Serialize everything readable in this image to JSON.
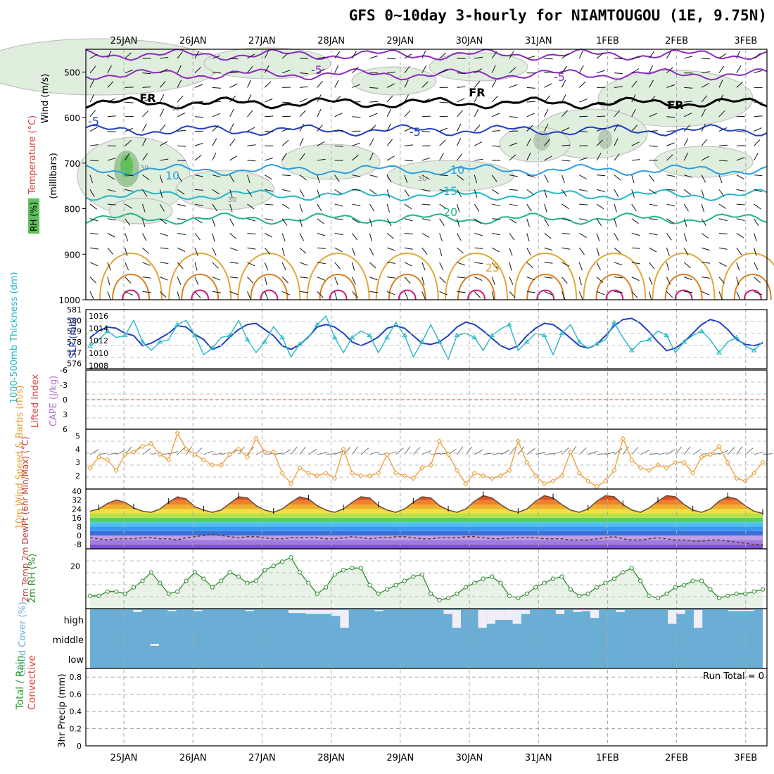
{
  "title": "GFS 0~10day 3-hourly for NIAMTOUGOU (1E, 9.75N)",
  "colors": {
    "pressure_dark": "#1f3fc4",
    "thickness_cyan": "#20b8c8",
    "wind_orange": "#ee9a2c",
    "rh_green": "#2c8c2c",
    "rh_fill": "#e8f2e6",
    "cloud_blue": "#6aaed6",
    "cape_violet": "#b070d0",
    "li_red": "#e04040",
    "freezing": "#000000"
  },
  "chart_data": [
    {
      "type": "line",
      "panel": "upper-air",
      "ylabel_parts": [
        "Wind (m/s)",
        "Temperature (°C)",
        "RH (%)",
        "(millibars)"
      ],
      "y_ticks": [
        "500",
        "600",
        "700",
        "800",
        "900",
        "1000"
      ],
      "ylim": [
        1000,
        450
      ],
      "x_ticks": [
        "25JAN",
        "26JAN",
        "27JAN",
        "28JAN",
        "29JAN",
        "30JAN",
        "31JAN",
        "1FEB",
        "2FEB",
        "3FEB"
      ],
      "contour_labels": [
        "-5",
        "-5",
        "FR",
        "FR",
        "FR",
        "-5",
        "-5",
        "10",
        "10",
        "15",
        "20",
        "25",
        "30",
        "30",
        "30",
        "10"
      ],
      "isotherms": [
        {
          "name": "-10",
          "pressure": 462,
          "color": "#8a2cc0"
        },
        {
          "name": "-5",
          "pressure": 505,
          "color": "#8a2cc0"
        },
        {
          "name": "FR",
          "pressure": 568,
          "color": "#000000"
        },
        {
          "name": "5",
          "pressure": 628,
          "color": "#1f3fc4"
        },
        {
          "name": "10",
          "pressure": 715,
          "color": "#2a9fe0"
        },
        {
          "name": "15",
          "pressure": 770,
          "color": "#20b8c8"
        },
        {
          "name": "20",
          "pressure": 822,
          "color": "#1fb48a"
        },
        {
          "name": "25",
          "pressure": 920,
          "color": "#e0a838"
        },
        {
          "name": "30",
          "pressure": 965,
          "color": "#d8801e"
        },
        {
          "name": "35",
          "pressure": 995,
          "color": "#cc1a80"
        }
      ]
    },
    {
      "type": "line",
      "panel": "pressure-thickness",
      "ylabel_left": "1000-500mb Thickness (dm)",
      "ylabel_right": "SLP (mb)",
      "left_ticks": [
        "581",
        "580",
        "579",
        "578",
        "577",
        "576"
      ],
      "right_ticks": [
        "1016",
        "1014",
        "1012",
        "1010",
        "1008"
      ],
      "series": [
        {
          "name": "SLP (mb)",
          "values": [
            1012.5,
            1013.6,
            1014.2,
            1014.0,
            1013.2,
            1012.8,
            1011.2,
            1011.6,
            1012.4,
            1013.2,
            1014.4,
            1014.2,
            1013.0,
            1012.2,
            1010.6,
            1011.2,
            1012.6,
            1013.8,
            1014.6,
            1014.8,
            1013.8,
            1012.8,
            1011.2,
            1010.6,
            1011.4,
            1012.6,
            1014.2,
            1014.6,
            1014.2,
            1013.2,
            1011.8,
            1011.2,
            1011.8,
            1012.6,
            1014.0,
            1014.4,
            1014.0,
            1012.8,
            1011.6,
            1011.4,
            1011.8,
            1012.8,
            1014.2,
            1015.0,
            1014.6,
            1013.6,
            1012.4,
            1011.2,
            1010.6,
            1011.2,
            1012.8,
            1014.0,
            1014.8,
            1014.6,
            1013.6,
            1012.4,
            1011.2,
            1010.8,
            1011.4,
            1012.8,
            1014.4,
            1015.4,
            1015.6,
            1014.8,
            1013.4,
            1011.8,
            1010.4,
            1010.8,
            1011.8,
            1013.2,
            1014.6,
            1015.4,
            1015.0,
            1013.8,
            1012.2,
            1011.4,
            1011.2,
            1011.6
          ]
        },
        {
          "name": "Thickness (dm)",
          "values": [
            577.6,
            578.2,
            579.0,
            578.4,
            578.6,
            580.0,
            578.0,
            577.2,
            578.0,
            578.2,
            579.6,
            580.0,
            578.6,
            576.8,
            577.4,
            578.4,
            578.6,
            580.0,
            578.2,
            577.0,
            578.0,
            579.4,
            578.4,
            576.6,
            577.8,
            578.4,
            579.6,
            580.4,
            578.4,
            577.0,
            578.4,
            579.0,
            578.6,
            577.0,
            578.4,
            579.8,
            578.6,
            576.6,
            578.0,
            579.6,
            578.0,
            576.4,
            578.6,
            578.8,
            578.4,
            577.2,
            578.6,
            579.2,
            579.6,
            577.2,
            578.0,
            578.8,
            578.6,
            576.8,
            578.8,
            579.6,
            578.0,
            577.4,
            577.8,
            578.2,
            579.8,
            578.4,
            577.2,
            578.0,
            578.2,
            579.0,
            578.6,
            577.0,
            578.0,
            578.6,
            579.0,
            578.2,
            577.0,
            578.0,
            578.4,
            577.6,
            577.2,
            578.0
          ]
        }
      ]
    },
    {
      "type": "line",
      "panel": "stability",
      "ylabel_left": "Lifted Index",
      "ylabel_right": "CAPE (J/kg)",
      "y_ticks": [
        "-6",
        "-3",
        "0",
        "3",
        "6"
      ],
      "ylim": [
        -6,
        6
      ],
      "values": []
    },
    {
      "type": "line",
      "panel": "surface-wind",
      "ylabel": "10m Wind Speed & Barbs (m/s)",
      "y_ticks": [
        "5",
        "4",
        "3",
        "2"
      ],
      "ylim": [
        1,
        5.5
      ],
      "series": [
        {
          "name": "Speed",
          "values": [
            2.6,
            3.4,
            3.2,
            2.4,
            3.6,
            3.8,
            4.2,
            4.4,
            3.6,
            3.2,
            5.2,
            4.0,
            3.6,
            3.2,
            2.8,
            2.8,
            3.6,
            4.0,
            3.4,
            4.8,
            3.8,
            3.8,
            2.2,
            1.4,
            2.6,
            2.2,
            2.0,
            2.2,
            1.8,
            4.0,
            2.2,
            2.0,
            2.0,
            2.2,
            3.6,
            2.2,
            2.0,
            1.8,
            2.6,
            2.8,
            4.6,
            3.6,
            2.4,
            1.4,
            2.2,
            2.0,
            1.8,
            2.0,
            2.4,
            4.6,
            3.0,
            2.0,
            1.4,
            1.6,
            2.0,
            3.8,
            2.2,
            1.6,
            1.2,
            1.6,
            2.4,
            4.8,
            3.2,
            2.6,
            2.4,
            2.8,
            2.6,
            3.0,
            3.0,
            2.2,
            3.4,
            3.6,
            4.2,
            3.0,
            1.8,
            1.6,
            2.2,
            3.0
          ]
        }
      ]
    },
    {
      "type": "area",
      "panel": "surface-temperature",
      "ylabel": "2m Temp 2m DewPt (6hr Min/Max) (°C)",
      "y_ticks": [
        "40",
        "32",
        "24",
        "16",
        "8",
        "0",
        "-8"
      ],
      "ylim": [
        -12,
        42
      ],
      "series": [
        {
          "name": "2m Temp",
          "values": [
            22,
            24,
            29,
            32,
            30,
            25,
            22,
            21,
            24,
            30,
            35,
            33,
            26,
            23,
            21,
            23,
            29,
            35,
            34,
            27,
            23,
            21,
            24,
            30,
            35,
            33,
            27,
            23,
            21,
            24,
            30,
            35,
            34,
            27,
            23,
            21,
            24,
            30,
            35,
            34,
            27,
            23,
            21,
            24,
            31,
            36,
            34,
            28,
            23,
            21,
            24,
            31,
            36,
            34,
            28,
            23,
            21,
            24,
            31,
            36,
            35,
            28,
            23,
            21,
            25,
            31,
            36,
            35,
            28,
            23,
            21,
            24,
            31,
            35,
            33,
            27,
            22,
            20
          ]
        },
        {
          "name": "2m DewPt",
          "values": [
            -2,
            -3,
            -4,
            -3,
            -3,
            -3,
            -2,
            -2,
            -3,
            -3,
            -4,
            -2,
            -1,
            0,
            1,
            0,
            -1,
            -2,
            -1,
            -1,
            -2,
            -3,
            -3,
            -2,
            -2,
            -2,
            -2,
            -3,
            -3,
            -2,
            -1,
            -2,
            -3,
            -2,
            -2,
            -1,
            -1,
            -2,
            -3,
            -3,
            -2,
            -2,
            -2,
            -1,
            -1,
            -2,
            -3,
            -3,
            -2,
            -2,
            -2,
            -2,
            -3,
            -3,
            -3,
            -4,
            -4,
            -4,
            -3,
            -2,
            -1,
            -3,
            -4,
            -4,
            -3,
            -2,
            -3,
            -4,
            -4,
            -5,
            -5,
            -4,
            -4,
            -5,
            -6,
            -7,
            -8,
            -8
          ]
        }
      ]
    },
    {
      "type": "area",
      "panel": "surface-rh",
      "ylabel": "2m RH (%)",
      "y_ticks": [
        "20"
      ],
      "ylim": [
        0,
        28
      ],
      "series": [
        {
          "name": "2m RH",
          "values": [
            6,
            6,
            8,
            8,
            7,
            10,
            13,
            17,
            12,
            7,
            8,
            13,
            17,
            14,
            10,
            13,
            17,
            15,
            12,
            13,
            18,
            20,
            22,
            24,
            17,
            12,
            7,
            10,
            16,
            18,
            19,
            19,
            11,
            7,
            9,
            11,
            13,
            15,
            16,
            7,
            4,
            5,
            7,
            10,
            12,
            14,
            15,
            12,
            6,
            5,
            7,
            10,
            12,
            14,
            15,
            9,
            6,
            7,
            10,
            12,
            14,
            17,
            19,
            13,
            6,
            5,
            7,
            10,
            11,
            13,
            13,
            9,
            5,
            6,
            7,
            7,
            8,
            9
          ]
        }
      ]
    },
    {
      "type": "bar",
      "panel": "cloud-cover",
      "ylabel": "Cloud Cover (%)",
      "y_ticks": [
        "high",
        "middle",
        "low"
      ],
      "high": [
        0,
        0,
        0,
        0,
        0,
        10,
        0,
        0,
        0,
        5,
        0,
        0,
        5,
        0,
        0,
        0,
        0,
        0,
        5,
        0,
        0,
        0,
        0,
        15,
        15,
        20,
        20,
        20,
        30,
        90,
        0,
        0,
        0,
        5,
        0,
        0,
        0,
        0,
        0,
        0,
        0,
        20,
        90,
        0,
        0,
        90,
        70,
        50,
        50,
        70,
        20,
        0,
        0,
        0,
        20,
        0,
        10,
        5,
        40,
        0,
        0,
        10,
        0,
        0,
        0,
        0,
        0,
        70,
        20,
        0,
        90,
        0,
        0,
        0,
        5,
        5,
        5,
        0
      ],
      "middle": [
        0,
        0,
        0,
        0,
        0,
        0,
        0,
        10,
        0,
        0,
        0,
        0,
        0,
        0,
        0,
        0,
        0,
        0,
        0,
        0,
        0,
        0,
        0,
        0,
        0,
        0,
        0,
        0,
        0,
        0,
        0,
        0,
        0,
        0,
        0,
        0,
        0,
        0,
        0,
        0,
        0,
        0,
        0,
        0,
        0,
        0,
        0,
        0,
        0,
        0,
        0,
        0,
        0,
        0,
        0,
        0,
        0,
        0,
        0,
        0,
        0,
        0,
        0,
        0,
        0,
        0,
        0,
        0,
        0,
        0,
        0,
        0,
        0,
        0,
        0,
        0,
        0,
        0
      ],
      "low": []
    },
    {
      "type": "bar",
      "panel": "precipitation",
      "ylabel": "3hr Precip (mm)",
      "legend": [
        "Total / Rain",
        "Convective"
      ],
      "annotation": "Run Total = 0",
      "y_ticks": [
        "0.8",
        "0.6",
        "0.4",
        "0.2",
        "0"
      ],
      "ylim": [
        0,
        0.9
      ],
      "values": []
    }
  ]
}
